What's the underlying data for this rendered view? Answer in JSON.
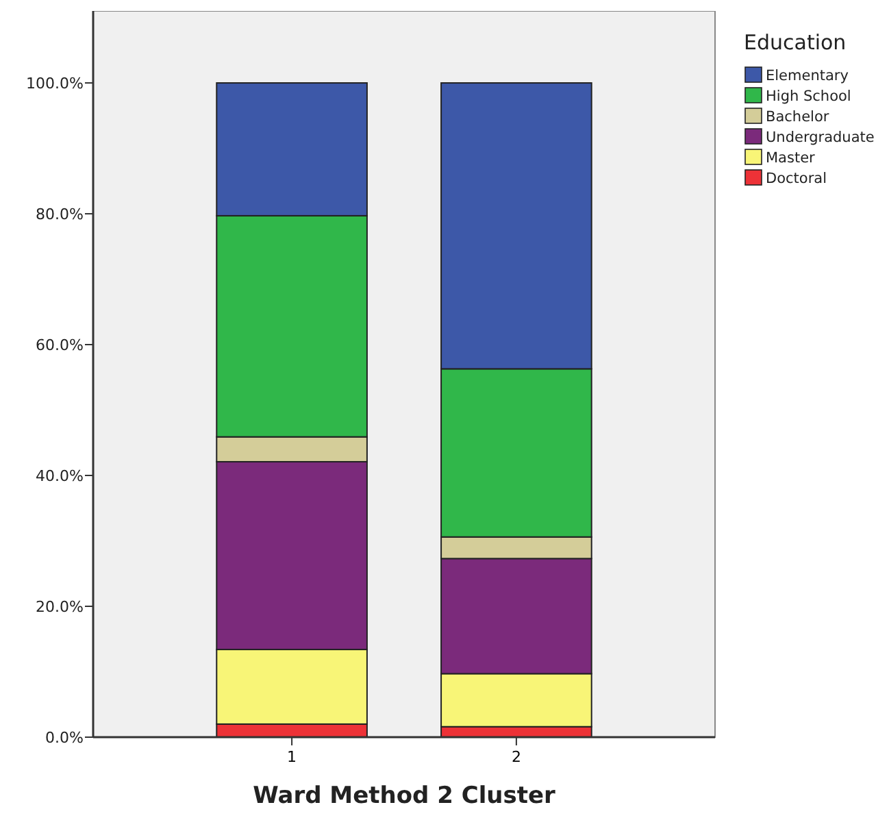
{
  "chart_data": {
    "type": "bar",
    "stacked": true,
    "xlabel": "Ward Method 2 Cluster",
    "legend_title": "Education",
    "categories": [
      "1",
      "2"
    ],
    "series": [
      {
        "name": "Doctoral",
        "color": "#ed3237",
        "values": [
          2.0,
          1.6
        ]
      },
      {
        "name": "Master",
        "color": "#f8f577",
        "values": [
          11.4,
          8.1
        ]
      },
      {
        "name": "Undergraduate",
        "color": "#7b2a7b",
        "values": [
          28.7,
          17.6
        ]
      },
      {
        "name": "Bachelor",
        "color": "#d4cd99",
        "values": [
          3.8,
          3.3
        ]
      },
      {
        "name": "High School",
        "color": "#30b74a",
        "values": [
          33.8,
          25.7
        ]
      },
      {
        "name": "Elementary",
        "color": "#3d58a8",
        "values": [
          20.3,
          43.7
        ]
      }
    ],
    "ylim": [
      0,
      111
    ],
    "yticks": [
      {
        "value": 0,
        "label": "0.0%"
      },
      {
        "value": 20,
        "label": "20.0%"
      },
      {
        "value": 40,
        "label": "40.0%"
      },
      {
        "value": 60,
        "label": "60.0%"
      },
      {
        "value": 80,
        "label": "80.0%"
      },
      {
        "value": 100,
        "label": "100.0%"
      }
    ],
    "grid": false,
    "legend": "top right"
  }
}
